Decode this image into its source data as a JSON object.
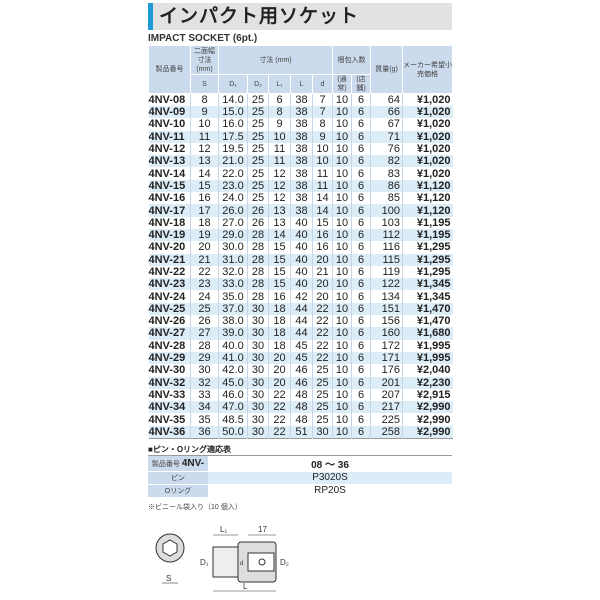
{
  "title": "インパクト用ソケット",
  "subtitle": "IMPACT SOCKET (6pt.)",
  "header": {
    "product": "製品番号",
    "s_group": "二面幅寸法(mm)",
    "dim_group": "寸法 (mm)",
    "pack_group": "梱包入数",
    "weight": "質量(g)",
    "price": "メーカー希望小売価格",
    "s": "S",
    "d1": "D₁",
    "d2": "D₂",
    "l1": "L₁",
    "l": "L",
    "d": "d",
    "pack_normal": "(通常)",
    "pack_store": "(店舗)"
  },
  "rows": [
    [
      "4NV-08",
      "8",
      "14.0",
      "25",
      "6",
      "38",
      "7",
      "10",
      "6",
      "64",
      "¥1,020"
    ],
    [
      "4NV-09",
      "9",
      "15.0",
      "25",
      "8",
      "38",
      "7",
      "10",
      "6",
      "66",
      "¥1,020"
    ],
    [
      "4NV-10",
      "10",
      "16.0",
      "25",
      "9",
      "38",
      "8",
      "10",
      "6",
      "67",
      "¥1,020"
    ],
    [
      "4NV-11",
      "11",
      "17.5",
      "25",
      "10",
      "38",
      "9",
      "10",
      "6",
      "71",
      "¥1,020"
    ],
    [
      "4NV-12",
      "12",
      "19.5",
      "25",
      "11",
      "38",
      "10",
      "10",
      "6",
      "76",
      "¥1,020"
    ],
    [
      "4NV-13",
      "13",
      "21.0",
      "25",
      "11",
      "38",
      "10",
      "10",
      "6",
      "82",
      "¥1,020"
    ],
    [
      "4NV-14",
      "14",
      "22.0",
      "25",
      "12",
      "38",
      "11",
      "10",
      "6",
      "83",
      "¥1,020"
    ],
    [
      "4NV-15",
      "15",
      "23.0",
      "25",
      "12",
      "38",
      "11",
      "10",
      "6",
      "86",
      "¥1,120"
    ],
    [
      "4NV-16",
      "16",
      "24.0",
      "25",
      "12",
      "38",
      "14",
      "10",
      "6",
      "85",
      "¥1,120"
    ],
    [
      "4NV-17",
      "17",
      "26.0",
      "26",
      "13",
      "38",
      "14",
      "10",
      "6",
      "100",
      "¥1,120"
    ],
    [
      "4NV-18",
      "18",
      "27.0",
      "26",
      "13",
      "40",
      "15",
      "10",
      "6",
      "103",
      "¥1,195"
    ],
    [
      "4NV-19",
      "19",
      "29.0",
      "28",
      "14",
      "40",
      "16",
      "10",
      "6",
      "112",
      "¥1,195"
    ],
    [
      "4NV-20",
      "20",
      "30.0",
      "28",
      "15",
      "40",
      "16",
      "10",
      "6",
      "116",
      "¥1,295"
    ],
    [
      "4NV-21",
      "21",
      "31.0",
      "28",
      "15",
      "40",
      "20",
      "10",
      "6",
      "115",
      "¥1,295"
    ],
    [
      "4NV-22",
      "22",
      "32.0",
      "28",
      "15",
      "40",
      "21",
      "10",
      "6",
      "119",
      "¥1,295"
    ],
    [
      "4NV-23",
      "23",
      "33.0",
      "28",
      "15",
      "40",
      "20",
      "10",
      "6",
      "122",
      "¥1,345"
    ],
    [
      "4NV-24",
      "24",
      "35.0",
      "28",
      "16",
      "42",
      "20",
      "10",
      "6",
      "134",
      "¥1,345"
    ],
    [
      "4NV-25",
      "25",
      "37.0",
      "30",
      "18",
      "44",
      "22",
      "10",
      "6",
      "151",
      "¥1,470"
    ],
    [
      "4NV-26",
      "26",
      "38.0",
      "30",
      "18",
      "44",
      "22",
      "10",
      "6",
      "156",
      "¥1,470"
    ],
    [
      "4NV-27",
      "27",
      "39.0",
      "30",
      "18",
      "44",
      "22",
      "10",
      "6",
      "160",
      "¥1,680"
    ],
    [
      "4NV-28",
      "28",
      "40.0",
      "30",
      "18",
      "45",
      "22",
      "10",
      "6",
      "172",
      "¥1,995"
    ],
    [
      "4NV-29",
      "29",
      "41.0",
      "30",
      "20",
      "45",
      "22",
      "10",
      "6",
      "171",
      "¥1,995"
    ],
    [
      "4NV-30",
      "30",
      "42.0",
      "30",
      "20",
      "46",
      "25",
      "10",
      "6",
      "176",
      "¥2,040"
    ],
    [
      "4NV-32",
      "32",
      "45.0",
      "30",
      "20",
      "46",
      "25",
      "10",
      "6",
      "201",
      "¥2,230"
    ],
    [
      "4NV-33",
      "33",
      "46.0",
      "30",
      "22",
      "48",
      "25",
      "10",
      "6",
      "207",
      "¥2,915"
    ],
    [
      "4NV-34",
      "34",
      "47.0",
      "30",
      "22",
      "48",
      "25",
      "10",
      "6",
      "217",
      "¥2,990"
    ],
    [
      "4NV-35",
      "35",
      "48.5",
      "30",
      "22",
      "48",
      "25",
      "10",
      "6",
      "225",
      "¥2,990"
    ],
    [
      "4NV-36",
      "36",
      "50.0",
      "30",
      "22",
      "51",
      "30",
      "10",
      "6",
      "258",
      "¥2,990"
    ]
  ],
  "pin_table": {
    "title": "■ピン・Oリング適応表",
    "product_label": "製品番号",
    "product_prefix": "4NV-",
    "range": "08 ～ 36",
    "pin_label": "ピン",
    "pin": "P3020S",
    "oring_label": "Oリング",
    "oring": "RP20S"
  },
  "note": "※ビニール袋入り（10 個入）",
  "diagram": {
    "l1": "L₁",
    "len17": "17",
    "d1": "D₁",
    "d2": "D₂",
    "d": "d",
    "s": "S",
    "l": "L"
  }
}
